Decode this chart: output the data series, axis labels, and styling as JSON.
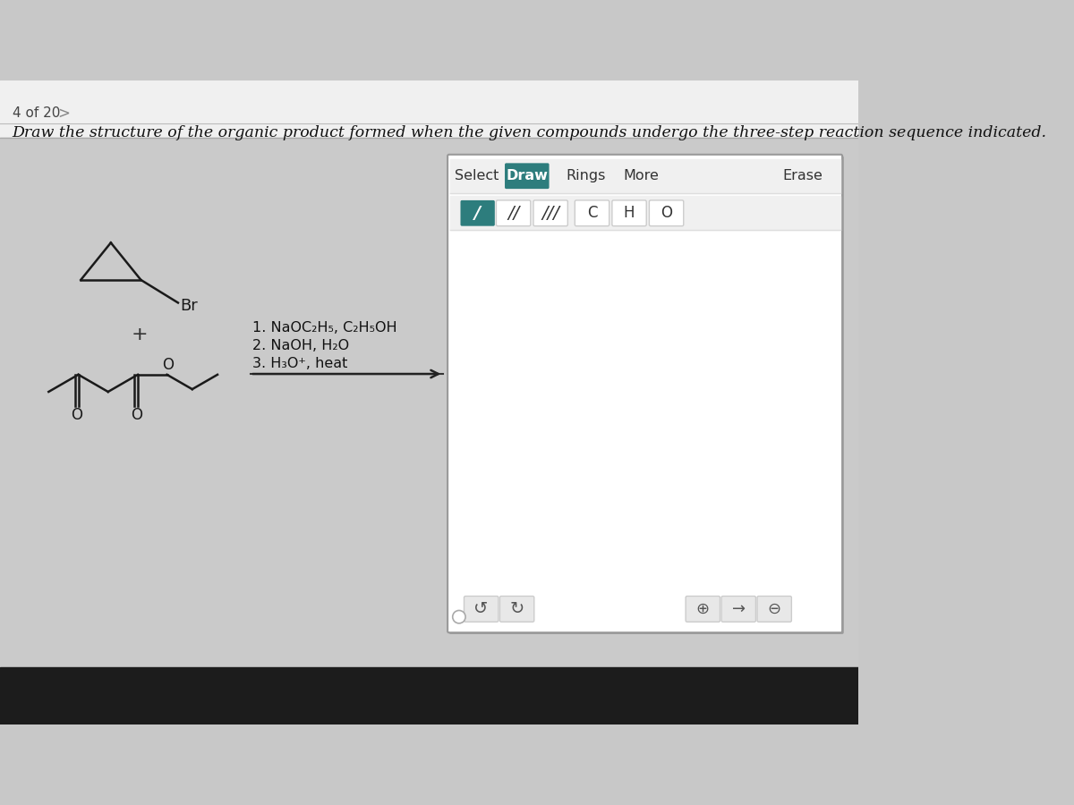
{
  "title_text": "Draw the structure of the organic product formed when the given compounds undergo the three-step reaction sequence indicated.",
  "bg_top": "#e8e8e8",
  "bg_main": "#d0d0d0",
  "bg_dark_bottom": "#1a1a1a",
  "header_text": "4 of 20",
  "reaction_steps_line1": "1. NaOC",
  "reaction_steps_line1_sub": "2",
  "reaction_steps_line1_rest": "H",
  "reaction_steps_line1_sub2": "5",
  "reaction_steps_line1_end": ", C",
  "reaction_steps_line1_sub3": "2",
  "reaction_steps_line1_h": "H",
  "reaction_steps_line1_sub4": "5",
  "reaction_steps_line1_oh": "OH",
  "reaction_steps": [
    "1. NaOC₂H₅, C₂H₅OH",
    "2. NaOH, H₂O",
    "3. H₃O⁺, heat"
  ],
  "toolbar_items": [
    "Select",
    "Draw",
    "Rings",
    "More",
    "Erase"
  ],
  "toolbar_active": "Draw",
  "teal_color": "#2d7d7d",
  "teal_dark": "#1f6060",
  "line_color": "#1a1a1a",
  "panel_bg": "#ffffff",
  "panel_border": "#aaaaaa",
  "toolbar_bg": "#f5f5f5",
  "btn_bg": "#e8e8e8",
  "white": "#ffffff",
  "iridescent_overlay": true
}
